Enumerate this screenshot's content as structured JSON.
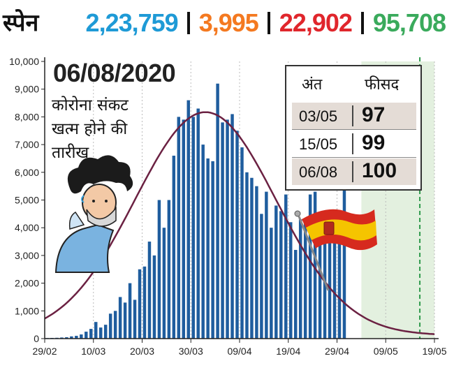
{
  "header": {
    "country": "स्पेन",
    "stats": [
      {
        "value": "2,23,759",
        "color": "#1e9ad6"
      },
      {
        "value": "3,995",
        "color": "#f47920"
      },
      {
        "value": "22,902",
        "color": "#e0262c"
      },
      {
        "value": "95,708",
        "color": "#3aaa5c"
      }
    ]
  },
  "annotation": {
    "date": "06/08/2020",
    "caption": "कोरोना संकट\nखत्म होने की\nतारीख"
  },
  "table": {
    "headers": [
      "अंत",
      "फीसद"
    ],
    "rows": [
      {
        "date": "03/05",
        "percent": "97"
      },
      {
        "date": "15/05",
        "percent": "99"
      },
      {
        "date": "06/08",
        "percent": "100"
      }
    ]
  },
  "chart_data": {
    "type": "bar",
    "ylim": [
      0,
      10000
    ],
    "yticks": [
      "0",
      "1,000",
      "2,000",
      "3,000",
      "4,000",
      "5,000",
      "6,000",
      "7,000",
      "8,000",
      "9,000",
      "10,000"
    ],
    "xticks": [
      "29/02",
      "10/03",
      "20/03",
      "30/03",
      "09/04",
      "19/04",
      "29/04",
      "09/05",
      "19/05"
    ],
    "x_start": "2020-02-29",
    "daily_cases": [
      20,
      25,
      30,
      40,
      50,
      80,
      100,
      150,
      250,
      350,
      600,
      400,
      500,
      900,
      1000,
      1500,
      1300,
      2000,
      1400,
      2500,
      2600,
      3500,
      3000,
      5000,
      4000,
      5000,
      6600,
      8000,
      7900,
      8600,
      8000,
      8300,
      7000,
      6500,
      6400,
      9200,
      7800,
      7900,
      8100,
      7500,
      6900,
      6000,
      5800,
      5500,
      4500,
      5300,
      4000,
      4800,
      4600,
      5200,
      4200,
      3200,
      4300,
      4300,
      5200,
      5300,
      4000,
      4200,
      4300,
      4100,
      4400,
      5500
    ],
    "fitted_curve": {
      "peak_date": "2020-04-02",
      "peak_value": 8050,
      "color": "#6b2142"
    },
    "bar_color": "#1f5d9e",
    "projection_band_from": "2020-05-04",
    "projection_band_color": "#e3f0df",
    "marker_line_date": "2020-05-16",
    "marker_line_color": "#2f9a4c"
  }
}
